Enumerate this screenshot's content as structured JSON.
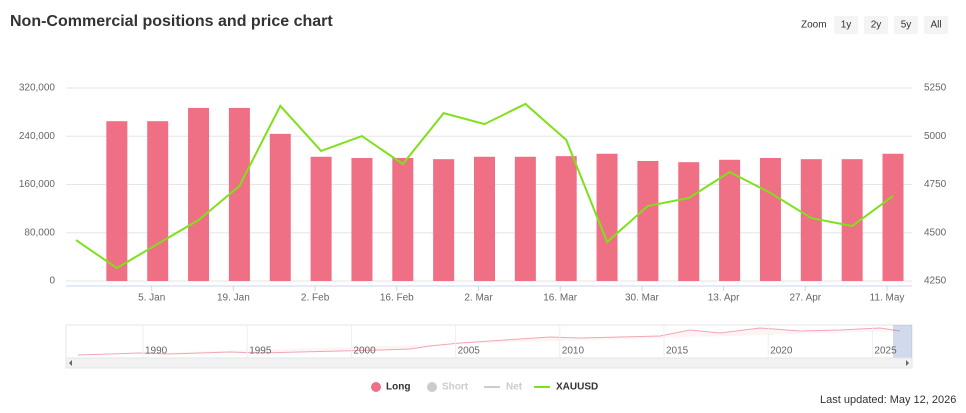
{
  "chart_data": {
    "type": "bar",
    "title": "Non-Commercial positions and price chart",
    "zoom": {
      "label": "Zoom",
      "buttons": [
        "1y",
        "2y",
        "5y",
        "All"
      ]
    },
    "categories": [
      null,
      null,
      "5. Jan",
      null,
      "19. Jan",
      null,
      "2. Feb",
      null,
      "16. Feb",
      null,
      "2. Mar",
      null,
      "16. Mar",
      null,
      "30. Mar",
      null,
      "13. Apr",
      null,
      "27. Apr",
      null,
      "11. May"
    ],
    "ylim": [
      0,
      320000
    ],
    "yticks": [
      0,
      {
        "value": 80000,
        "label": "80,000"
      },
      {
        "value": 160000,
        "label": "160,000"
      },
      {
        "value": 240000,
        "label": "240,000"
      },
      {
        "value": 320000,
        "label": "320,000"
      }
    ],
    "y2lim": [
      4250,
      5250
    ],
    "y2ticks": [
      4250,
      4500,
      4750,
      5000,
      5250
    ],
    "grid": true,
    "series": [
      {
        "name": "Long",
        "type": "bar",
        "color": "#ef6f84",
        "visible": true,
        "values": [
          null,
          265000,
          265000,
          287000,
          287000,
          244000,
          206000,
          204000,
          204000,
          202000,
          206000,
          206000,
          207000,
          211000,
          199000,
          197000,
          201000,
          204000,
          202000,
          202000,
          211000
        ]
      },
      {
        "name": "Short",
        "type": "bar",
        "color": "#cccccc",
        "visible": false,
        "values": [
          null,
          null,
          null,
          null,
          null,
          null,
          null,
          null,
          null,
          null,
          null,
          null,
          null,
          null,
          null,
          null,
          null,
          null,
          null,
          null,
          null
        ]
      },
      {
        "name": "Net",
        "type": "line",
        "color": "#cccccc",
        "visible": false,
        "values": [
          null,
          null,
          null,
          null,
          null,
          null,
          null,
          null,
          null,
          null,
          null,
          null,
          null,
          null,
          null,
          null,
          null,
          null,
          null,
          null,
          null
        ]
      },
      {
        "name": "XAUUSD",
        "type": "line",
        "axis": "y2",
        "color": "#7fe01c",
        "visible": true,
        "values": [
          4462,
          4317,
          4442,
          4566,
          4742,
          5157,
          4924,
          5001,
          4856,
          5120,
          5063,
          5167,
          4981,
          4452,
          4639,
          4680,
          4815,
          4706,
          4576,
          4535,
          4690
        ]
      }
    ],
    "navigator": {
      "labels": [
        "1990",
        "1995",
        "2000",
        "2005",
        "2010",
        "2015",
        "2020",
        "2025"
      ]
    },
    "footer": "Last updated: May 12, 2026"
  }
}
